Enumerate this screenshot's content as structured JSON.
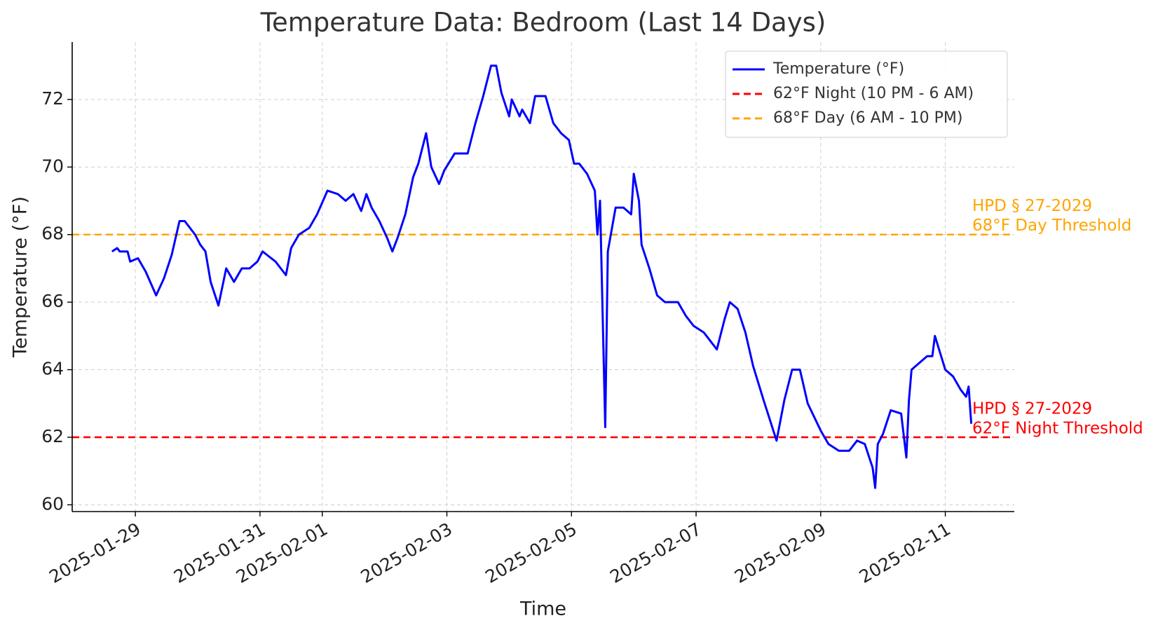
{
  "chart_data": {
    "type": "line",
    "title": "Temperature Data: Bedroom (Last 14 Days)",
    "x_label": "Time",
    "y_label": "Temperature (°F)",
    "xlim": [
      "2025-01-27 23:40",
      "2025-02-12 02:35"
    ],
    "ylim": [
      59.8,
      73.7
    ],
    "xticks": [
      "2025-01-29",
      "2025-01-31",
      "2025-02-01",
      "2025-02-03",
      "2025-02-05",
      "2025-02-07",
      "2025-02-09",
      "2025-02-11"
    ],
    "yticks": [
      60,
      62,
      64,
      66,
      68,
      70,
      72
    ],
    "grid": true,
    "legend": "upper right",
    "x": [
      "2025-01-28 15:00",
      "2025-01-28 17:00",
      "2025-01-28 18:00",
      "2025-01-28 21:00",
      "2025-01-28 22:00",
      "2025-01-29 01:00",
      "2025-01-29 04:00",
      "2025-01-29 08:00",
      "2025-01-29 11:00",
      "2025-01-29 14:00",
      "2025-01-29 17:00",
      "2025-01-29 19:00",
      "2025-01-29 23:00",
      "2025-01-30 01:00",
      "2025-01-30 03:00",
      "2025-01-30 05:00",
      "2025-01-30 08:00",
      "2025-01-30 11:00",
      "2025-01-30 14:00",
      "2025-01-30 17:00",
      "2025-01-30 20:00",
      "2025-01-30 23:00",
      "2025-01-31 01:00",
      "2025-01-31 06:00",
      "2025-01-31 09:00",
      "2025-01-31 10:00",
      "2025-01-31 12:00",
      "2025-01-31 15:00",
      "2025-01-31 19:00",
      "2025-01-31 22:00",
      "2025-02-01 02:00",
      "2025-02-01 06:00",
      "2025-02-01 09:00",
      "2025-02-01 12:00",
      "2025-02-01 15:00",
      "2025-02-01 17:00",
      "2025-02-01 19:00",
      "2025-02-01 22:00",
      "2025-02-02 01:00",
      "2025-02-02 03:00",
      "2025-02-02 05:00",
      "2025-02-02 08:00",
      "2025-02-02 11:00",
      "2025-02-02 13:00",
      "2025-02-02 16:00",
      "2025-02-02 18:00",
      "2025-02-02 21:00",
      "2025-02-02 23:00",
      "2025-02-03 03:00",
      "2025-02-03 08:00",
      "2025-02-03 11:00",
      "2025-02-03 14:00",
      "2025-02-03 17:00",
      "2025-02-03 19:00",
      "2025-02-03 21:00",
      "2025-02-04 00:00",
      "2025-02-04 01:00",
      "2025-02-04 04:00",
      "2025-02-04 05:00",
      "2025-02-04 08:00",
      "2025-02-04 10:00",
      "2025-02-04 14:00",
      "2025-02-04 17:00",
      "2025-02-04 20:00",
      "2025-02-04 23:00",
      "2025-02-05 01:00",
      "2025-02-05 03:00",
      "2025-02-05 06:00",
      "2025-02-05 09:00",
      "2025-02-05 10:00",
      "2025-02-05 11:00",
      "2025-02-05 13:00",
      "2025-02-05 14:00",
      "2025-02-05 17:00",
      "2025-02-05 20:00",
      "2025-02-05 23:00",
      "2025-02-06 00:00",
      "2025-02-06 02:00",
      "2025-02-06 03:00",
      "2025-02-06 06:00",
      "2025-02-06 09:00",
      "2025-02-06 12:00",
      "2025-02-06 17:00",
      "2025-02-06 20:00",
      "2025-02-06 23:00",
      "2025-02-07 03:00",
      "2025-02-07 08:00",
      "2025-02-07 11:00",
      "2025-02-07 13:00",
      "2025-02-07 16:00",
      "2025-02-07 19:00",
      "2025-02-07 22:00",
      "2025-02-08 02:00",
      "2025-02-08 07:00",
      "2025-02-08 10:00",
      "2025-02-08 13:00",
      "2025-02-08 16:00",
      "2025-02-08 19:00",
      "2025-02-09 00:00",
      "2025-02-09 03:00",
      "2025-02-09 07:00",
      "2025-02-09 11:00",
      "2025-02-09 14:00",
      "2025-02-09 17:00",
      "2025-02-09 20:00",
      "2025-02-09 21:00",
      "2025-02-09 22:00",
      "2025-02-10 00:00",
      "2025-02-10 03:00",
      "2025-02-10 07:00",
      "2025-02-10 09:00",
      "2025-02-10 10:00",
      "2025-02-10 11:00",
      "2025-02-10 14:00",
      "2025-02-10 17:00",
      "2025-02-10 19:00",
      "2025-02-10 20:00",
      "2025-02-10 22:00",
      "2025-02-11 00:00",
      "2025-02-11 03:00",
      "2025-02-11 06:00",
      "2025-02-11 08:00",
      "2025-02-11 09:00",
      "2025-02-11 10:00"
    ],
    "series": [
      {
        "name": "Temperature (°F)",
        "color": "#0000ff",
        "values": [
          67.5,
          67.6,
          67.5,
          67.5,
          67.2,
          67.3,
          66.9,
          66.2,
          66.7,
          67.4,
          68.4,
          68.4,
          68.0,
          67.7,
          67.5,
          66.6,
          65.9,
          67.0,
          66.6,
          67.0,
          67.0,
          67.2,
          67.5,
          67.2,
          66.9,
          66.8,
          67.6,
          68.0,
          68.2,
          68.6,
          69.3,
          69.2,
          69.0,
          69.2,
          68.7,
          69.2,
          68.8,
          68.4,
          67.9,
          67.5,
          67.9,
          68.6,
          69.7,
          70.1,
          71.0,
          70.0,
          69.5,
          69.9,
          70.4,
          70.4,
          71.3,
          72.1,
          73.0,
          73.0,
          72.2,
          71.5,
          72.0,
          71.5,
          71.7,
          71.3,
          72.1,
          72.1,
          71.3,
          71.0,
          70.8,
          70.1,
          70.1,
          69.8,
          69.3,
          68.0,
          69.0,
          62.3,
          67.5,
          68.8,
          68.8,
          68.6,
          69.8,
          69.0,
          67.7,
          67.0,
          66.2,
          66.0,
          66.0,
          65.6,
          65.3,
          65.1,
          64.6,
          65.5,
          66.0,
          65.8,
          65.1,
          64.1,
          63.1,
          61.9,
          63.1,
          64.0,
          64.0,
          63.0,
          62.2,
          61.8,
          61.6,
          61.6,
          61.9,
          61.8,
          61.1,
          60.5,
          61.8,
          62.1,
          62.8,
          62.7,
          61.4,
          63.1,
          64.0,
          64.2,
          64.4,
          64.4,
          65.0,
          64.5,
          64.0,
          63.8,
          63.4,
          63.2,
          63.5,
          62.4
        ]
      }
    ],
    "hlines": [
      {
        "name": "62°F Night (10 PM - 6 AM)",
        "value": 62,
        "color": "#ff0000",
        "label": [
          "HPD § 27-2029",
          "62°F Night Threshold"
        ]
      },
      {
        "name": "68°F Day (6 AM - 10 PM)",
        "value": 68,
        "color": "#ffa500",
        "label": [
          "HPD § 27-2029",
          "68°F Day Threshold"
        ]
      }
    ]
  }
}
